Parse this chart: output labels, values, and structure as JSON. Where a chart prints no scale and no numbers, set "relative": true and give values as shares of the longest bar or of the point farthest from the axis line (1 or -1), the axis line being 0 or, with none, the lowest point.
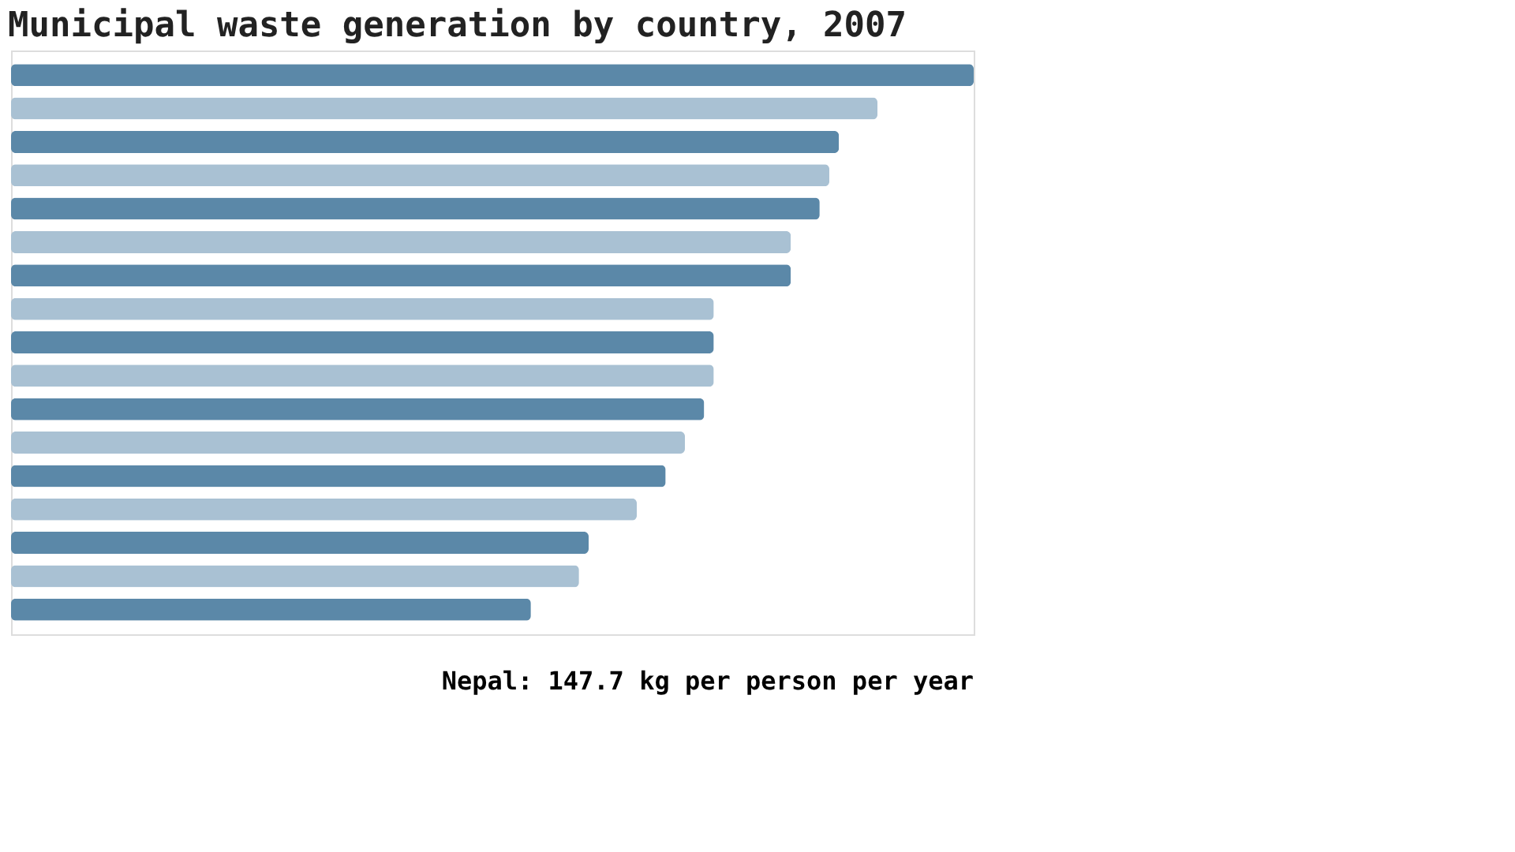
{
  "chart_data": {
    "type": "bar",
    "orientation": "horizontal",
    "relative": true,
    "title": "Municipal waste generation by country, 2007",
    "categories": [
      null,
      null,
      null,
      null,
      null,
      null,
      null,
      null,
      null,
      null,
      null,
      null,
      null,
      null,
      null,
      null,
      null
    ],
    "values": [
      1,
      0.9,
      0.86,
      0.85,
      0.84,
      0.81,
      0.81,
      0.73,
      0.73,
      0.73,
      0.72,
      0.7,
      0.68,
      0.65,
      0.6,
      0.59,
      0.54
    ],
    "colors": [
      "#5b88a8",
      "#a9c1d3",
      "#5b88a8",
      "#a9c1d3",
      "#5b88a8",
      "#a9c1d3",
      "#5b88a8",
      "#a9c1d3",
      "#5b88a8",
      "#a9c1d3",
      "#5b88a8",
      "#a9c1d3",
      "#5b88a8",
      "#a9c1d3",
      "#5b88a8",
      "#a9c1d3",
      "#5b88a8"
    ],
    "annotations": [
      "Nepal: 147.7 kg per person per year"
    ]
  }
}
